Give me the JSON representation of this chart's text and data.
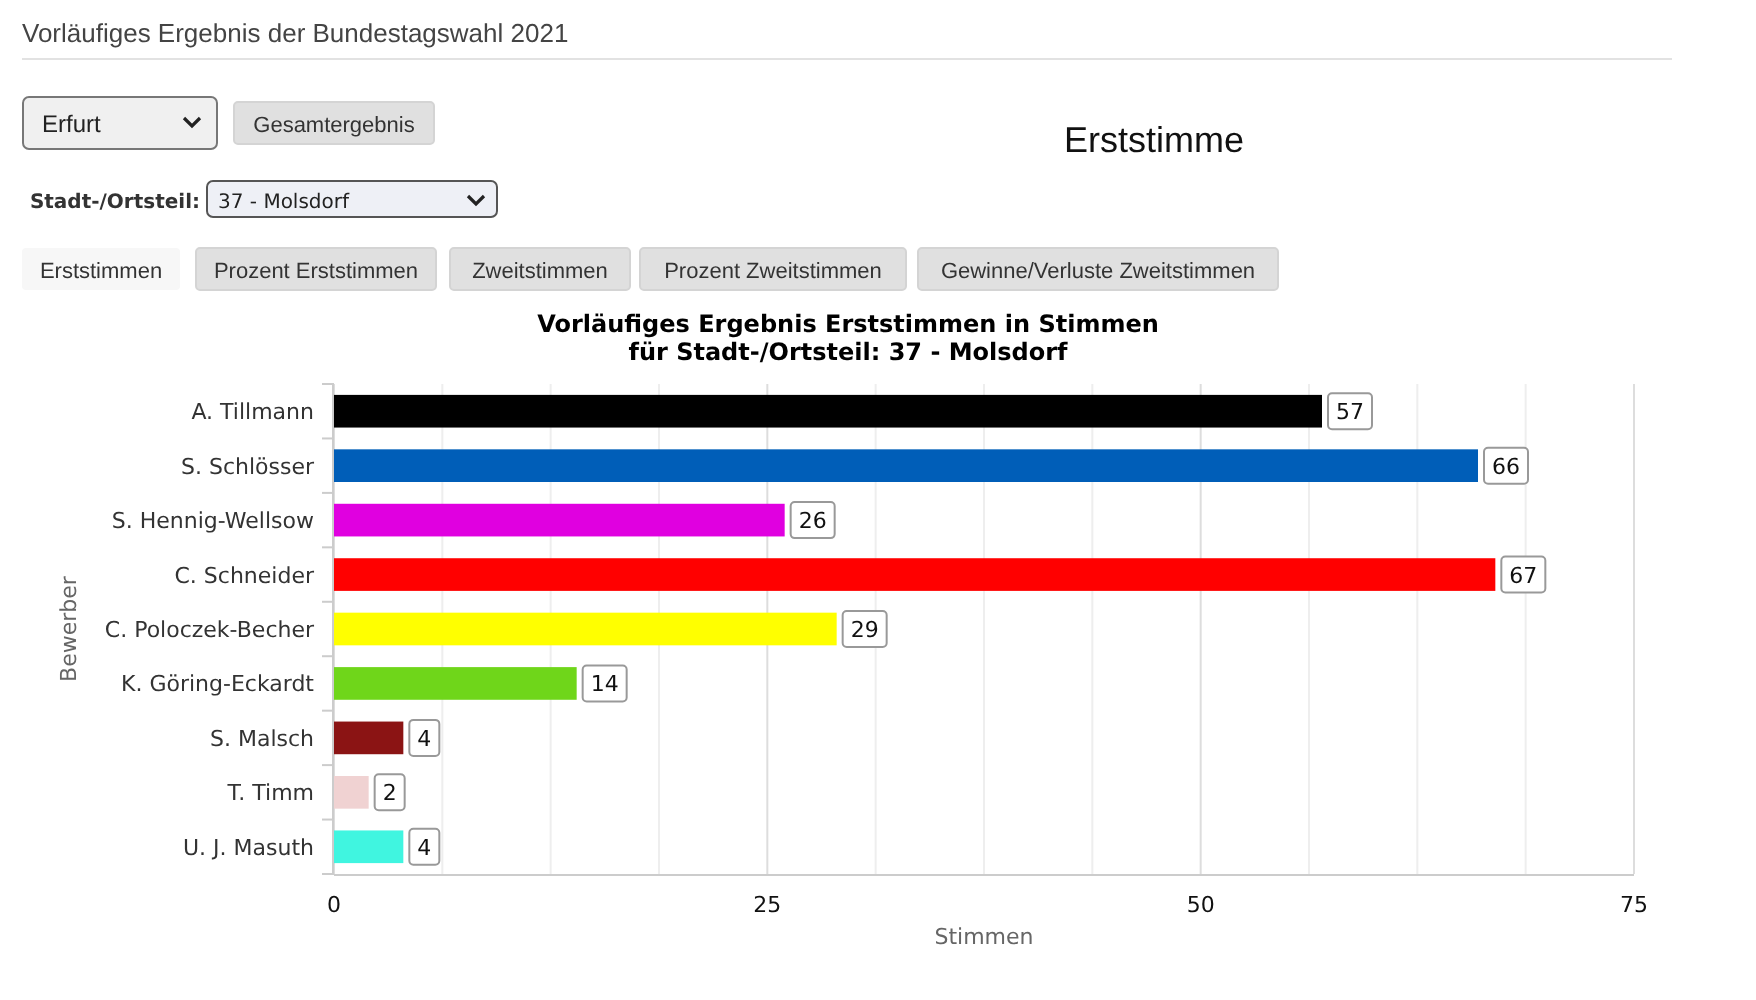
{
  "chart_data": {
    "type": "bar",
    "orientation": "horizontal",
    "title": "Vorläufiges Ergebnis Erststimmen in Stimmen",
    "subtitle": "für Stadt-/Ortsteil: 37 - Molsdorf",
    "xlabel": "Stimmen",
    "ylabel": "Bewerber",
    "categories": [
      "A. Tillmann",
      "S. Schlösser",
      "S. Hennig-Wellsow",
      "C. Schneider",
      "C. Poloczek-Becher",
      "K. Göring-Eckardt",
      "S. Malsch",
      "T. Timm",
      "U. J. Masuth"
    ],
    "values": [
      57,
      66,
      26,
      67,
      29,
      14,
      4,
      2,
      4
    ],
    "colors": [
      "#000000",
      "#005eb8",
      "#e000e0",
      "#ff0000",
      "#ffff00",
      "#6fd61a",
      "#8b1414",
      "#f0d2d2",
      "#40f5e0"
    ],
    "xlim": [
      0,
      75
    ],
    "xticks": [
      0,
      {
        "value": 6.25,
        "label": null
      },
      {
        "value": 12.5,
        "label": null
      },
      {
        "value": 18.75,
        "label": null
      },
      25,
      {
        "value": 31.25,
        "label": null
      },
      {
        "value": 37.5,
        "label": null
      },
      {
        "value": 43.75,
        "label": null
      },
      50,
      {
        "value": 56.25,
        "label": null
      },
      {
        "value": 62.5,
        "label": null
      },
      {
        "value": 68.75,
        "label": null
      },
      75
    ],
    "grid": "x",
    "data_labels": true,
    "annotations": [
      "Vorläufiges Ergebnis der Bundestagswahl 2021",
      "Erfurt",
      "Gesamtergebnis",
      "Erststimme",
      "Stadt-/Ortsteil:",
      "37 - Molsdorf",
      "Erststimmen",
      "Prozent Erststimmen",
      "Zweitstimmen",
      "Prozent Zweitstimmen",
      "Gewinne/Verluste Zweitstimmen"
    ]
  }
}
